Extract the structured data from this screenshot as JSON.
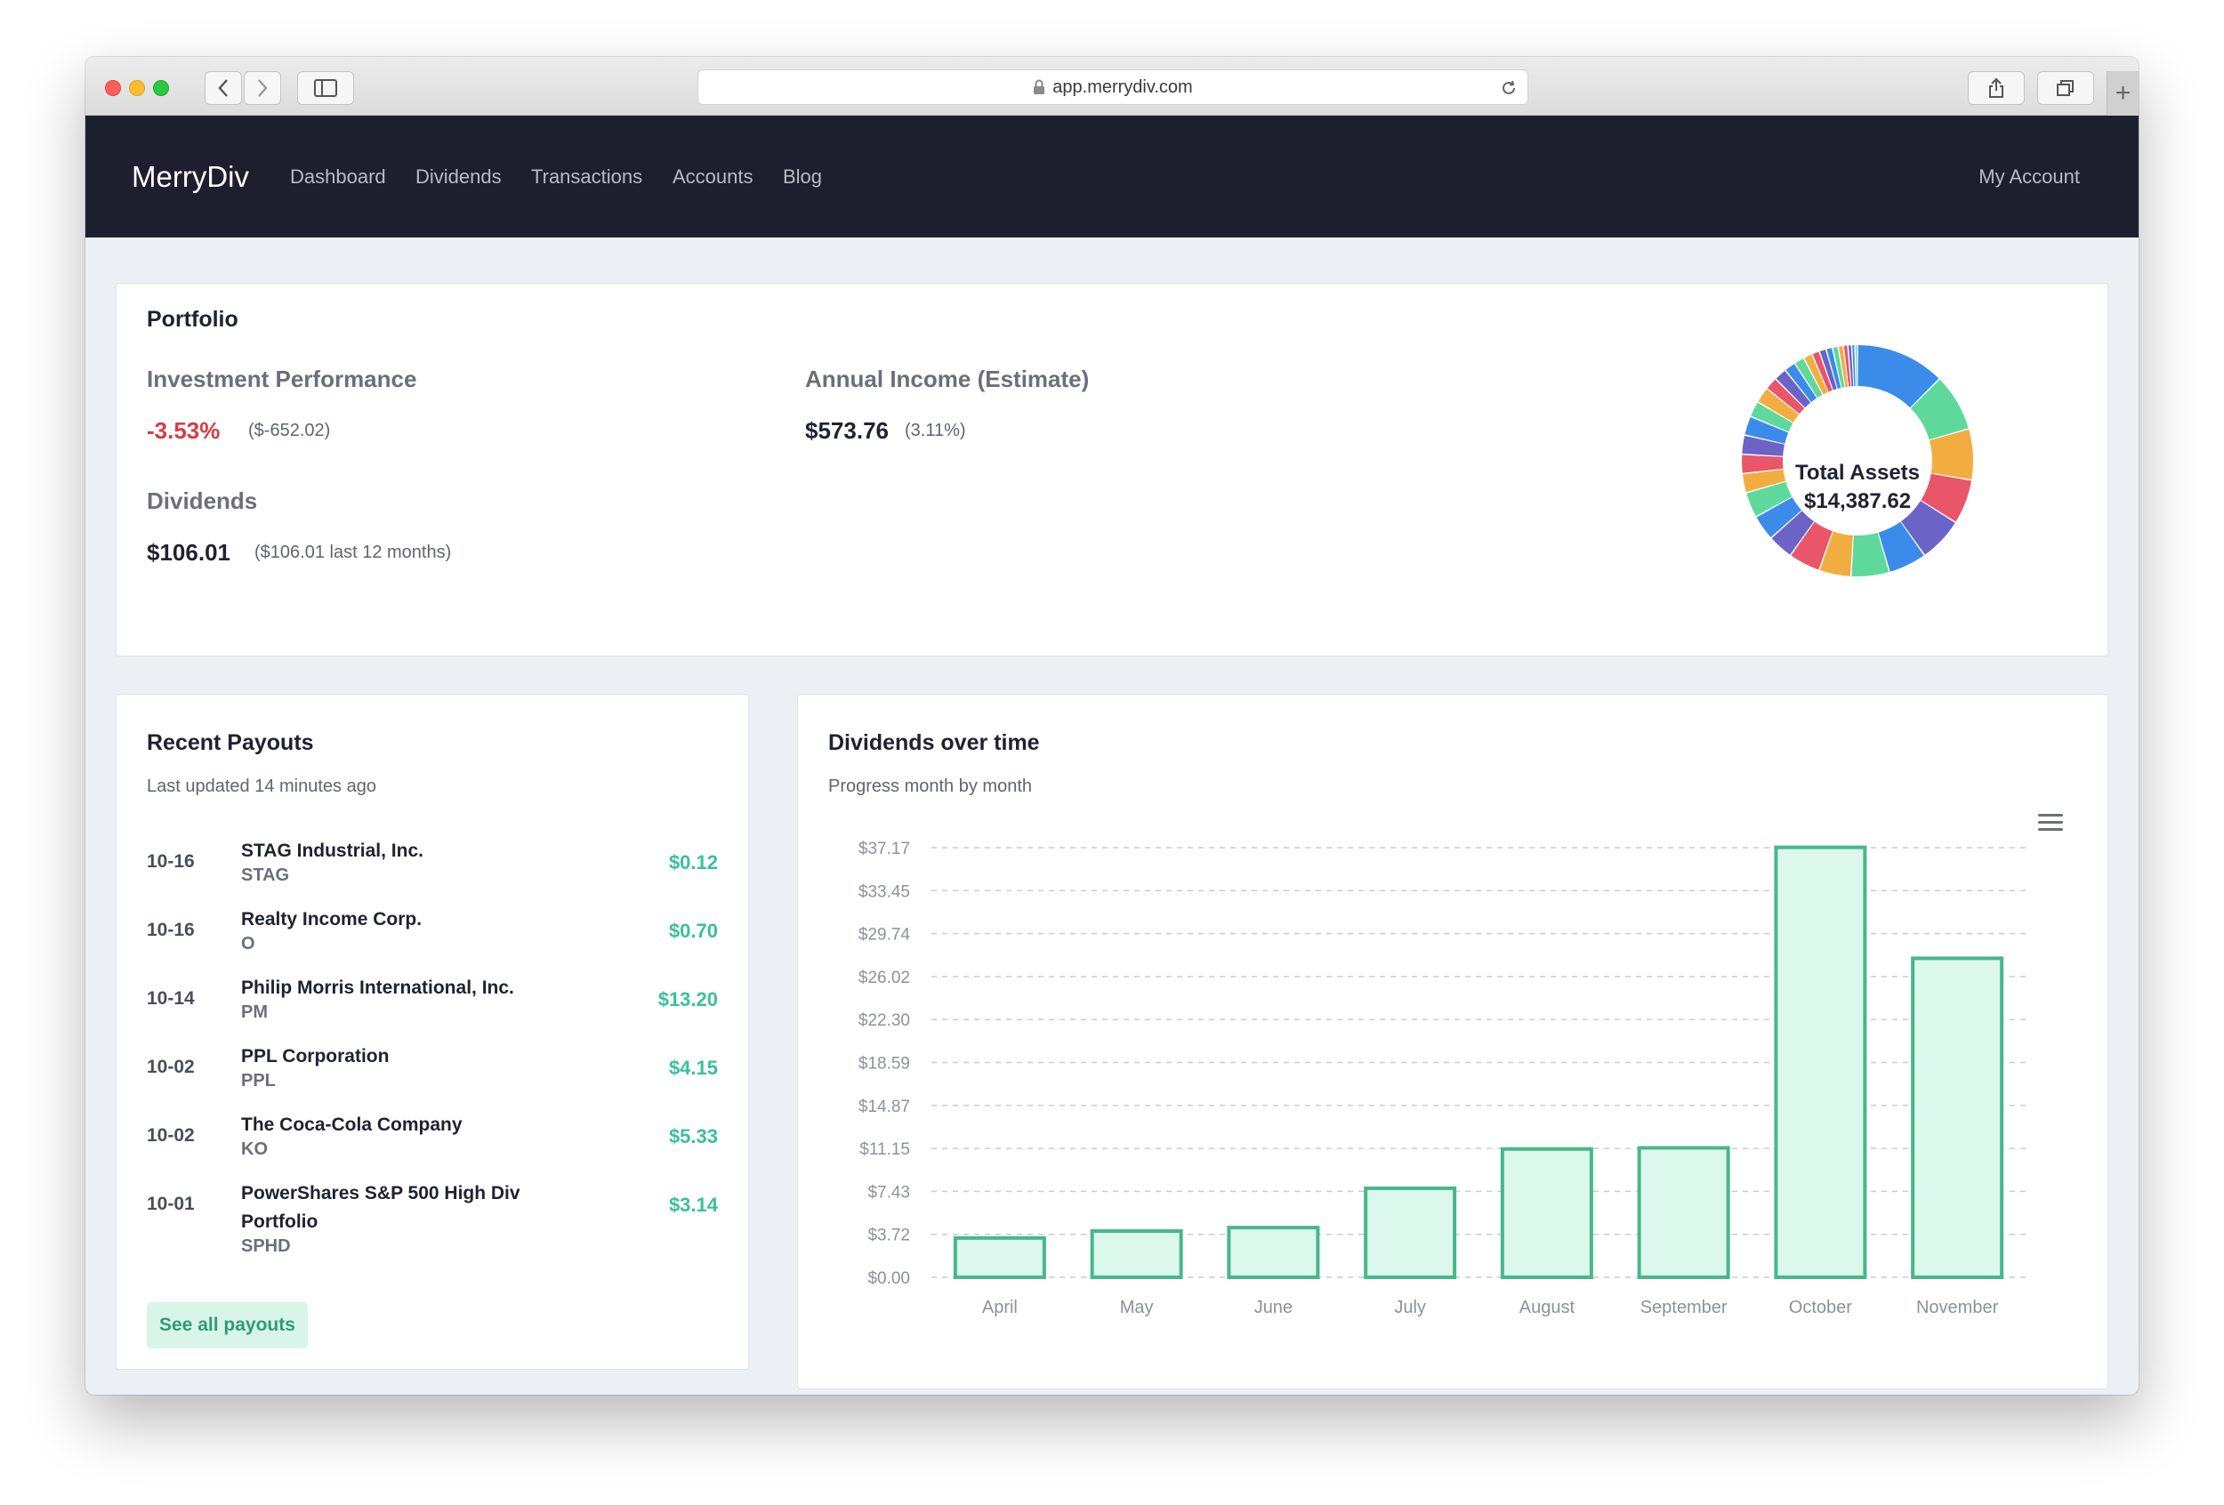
{
  "browser": {
    "url": "app.merrydiv.com",
    "icons": [
      "back-icon",
      "forward-icon",
      "sidebar-icon",
      "lock-icon",
      "reload-icon",
      "share-icon",
      "tabs-icon",
      "plus-icon"
    ]
  },
  "nav": {
    "brand": "MerryDiv",
    "links": [
      "Dashboard",
      "Dividends",
      "Transactions",
      "Accounts",
      "Blog"
    ],
    "account": "My Account",
    "background": "#1e1f2e"
  },
  "portfolio": {
    "title": "Portfolio",
    "performance": {
      "heading": "Investment Performance",
      "percent": "-3.53%",
      "amount": "($-652.02)"
    },
    "income": {
      "heading": "Annual Income (Estimate)",
      "value": "$573.76",
      "yield": "(3.11%)"
    },
    "dividends": {
      "heading": "Dividends",
      "value": "$106.01",
      "note": "($106.01 last 12 months)"
    },
    "total_assets": {
      "label": "Total Assets",
      "value": "$14,387.62"
    },
    "donut_colors": [
      "#3b8beb",
      "#5fd99b",
      "#f2ad41",
      "#e9566a",
      "#6c63c7",
      "#3b8beb",
      "#5fd99b",
      "#f2ad41",
      "#e9566a",
      "#6c63c7",
      "#3b8beb",
      "#5fd99b",
      "#f2ad41",
      "#e9566a",
      "#6c63c7",
      "#3b8beb",
      "#5fd99b",
      "#f2ad41",
      "#e9566a",
      "#6c63c7",
      "#3b8beb",
      "#5fd99b",
      "#f2ad41",
      "#e9566a",
      "#6c63c7",
      "#3b8beb",
      "#5fd99b",
      "#f2ad41",
      "#e9566a",
      "#6c63c7",
      "#3b8beb",
      "#5fd99b"
    ]
  },
  "payouts": {
    "title": "Recent Payouts",
    "subtitle": "Last updated 14 minutes ago",
    "rows": [
      {
        "date": "10-16",
        "name": "STAG Industrial, Inc.",
        "ticker": "STAG",
        "amount": "$0.12"
      },
      {
        "date": "10-16",
        "name": "Realty Income Corp.",
        "ticker": "O",
        "amount": "$0.70"
      },
      {
        "date": "10-14",
        "name": "Philip Morris International, Inc.",
        "ticker": "PM",
        "amount": "$13.20"
      },
      {
        "date": "10-02",
        "name": "PPL Corporation",
        "ticker": "PPL",
        "amount": "$4.15"
      },
      {
        "date": "10-02",
        "name": "The Coca-Cola Company",
        "ticker": "KO",
        "amount": "$5.33"
      },
      {
        "date": "10-01",
        "name": "PowerShares S&P 500 High Div Portfolio",
        "ticker": "SPHD",
        "amount": "$3.14"
      }
    ],
    "button": "See all payouts",
    "amount_color": "#3bbf9b"
  },
  "dividends_chart": {
    "title": "Dividends over time",
    "subtitle": "Progress month by month",
    "menu_icon": "hamburger-menu-icon"
  },
  "chart_data": {
    "type": "bar",
    "categories": [
      "April",
      "May",
      "June",
      "July",
      "August",
      "September",
      "October",
      "November"
    ],
    "values": [
      3.4,
      4.0,
      4.3,
      7.7,
      11.1,
      11.2,
      37.2,
      27.6
    ],
    "ytick_labels": [
      "$0.00",
      "$3.72",
      "$7.43",
      "$11.15",
      "$14.87",
      "$18.59",
      "$22.30",
      "$26.02",
      "$29.74",
      "$33.45",
      "$37.17"
    ],
    "ylim": [
      0,
      37.17
    ],
    "grid": true,
    "bar_fill": "#dcf7ec",
    "bar_stroke": "#46b88a"
  }
}
